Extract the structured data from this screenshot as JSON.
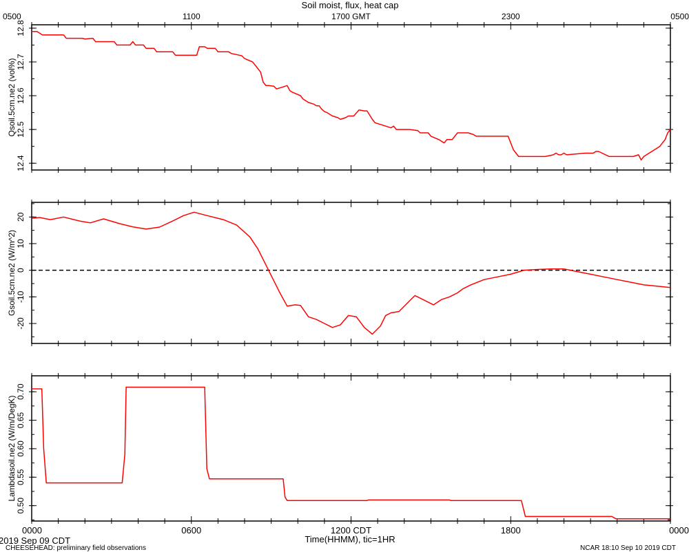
{
  "title": "Soil moist, flux, heat cap",
  "top_axis": {
    "suffix_label": "1700 GMT",
    "ticks": [
      "0500",
      "1100",
      "1700 GMT",
      "2300",
      "0500"
    ]
  },
  "bottom_axis": {
    "ticks": [
      "0000",
      "0600",
      "1200 CDT",
      "1800",
      "0000"
    ],
    "label": "Time(HHMM), tic=1HR"
  },
  "footer": {
    "date_left": "2019 Sep 09 CDT",
    "project": "CHEESEHEAD: preliminary field observations",
    "stamp": "NCAR 18:10 Sep 10 2019 CDT"
  },
  "colors": {
    "series": "#ff0000",
    "axes": "#000000",
    "zero_line": "#000000"
  },
  "chart_data": [
    {
      "type": "line",
      "ylabel": "Qsoil.5cm.ne2 (vol%)",
      "ylim": [
        12.38,
        12.81
      ],
      "yticks": [
        "12.4",
        "12.5",
        "12.6",
        "12.7",
        "12.8"
      ],
      "grid": false,
      "series": [
        {
          "x": [
            0.0,
            0.2,
            0.4,
            1.2,
            1.3,
            1.9,
            2.0,
            2.3,
            2.4,
            3.1,
            3.2,
            3.7,
            3.8,
            3.9,
            4.2,
            4.3,
            4.6,
            4.7,
            5.3,
            5.4,
            5.6,
            5.7,
            6.2,
            6.3,
            6.5,
            6.6,
            6.9,
            7.0,
            7.4,
            7.5,
            7.8,
            7.9,
            8.0,
            8.3,
            8.4,
            8.6,
            8.7,
            8.8,
            8.9,
            9.1,
            9.2,
            9.4,
            9.6,
            9.7,
            9.8,
            10.1,
            10.2,
            10.4,
            10.6,
            10.7,
            10.8,
            10.9,
            11.0,
            11.1,
            11.3,
            11.5,
            11.6,
            11.8,
            11.9,
            12.1,
            12.3,
            12.5,
            12.6,
            12.8,
            12.9,
            13.1,
            13.3,
            13.5,
            13.6,
            13.7,
            13.8,
            13.9,
            14.1,
            14.2,
            14.5,
            14.6,
            14.9,
            15.0,
            15.3,
            15.4,
            15.5,
            15.6,
            15.8,
            15.9,
            16.0,
            16.2,
            16.4,
            16.6,
            16.7,
            17.0,
            17.1,
            17.9,
            18.0,
            18.1,
            18.3,
            18.4,
            18.5,
            19.1,
            19.3,
            19.6,
            19.7,
            19.8,
            19.9,
            20.0,
            20.1,
            20.8,
            20.9,
            21.1,
            21.2,
            21.3,
            21.7,
            22.5,
            22.6,
            22.8,
            22.9,
            23.0,
            23.2,
            23.4,
            23.6,
            23.7,
            23.8,
            23.9,
            24.0
          ],
          "y": [
            12.79,
            12.79,
            12.78,
            12.78,
            12.77,
            12.77,
            12.768,
            12.77,
            12.76,
            12.76,
            12.75,
            12.75,
            12.76,
            12.75,
            12.75,
            12.74,
            12.74,
            12.73,
            12.73,
            12.72,
            12.72,
            12.72,
            12.72,
            12.745,
            12.745,
            12.74,
            12.74,
            12.73,
            12.73,
            12.725,
            12.72,
            12.718,
            12.71,
            12.7,
            12.69,
            12.67,
            12.64,
            12.63,
            12.63,
            12.628,
            12.62,
            12.625,
            12.63,
            12.615,
            12.61,
            12.6,
            12.59,
            12.58,
            12.575,
            12.57,
            12.57,
            12.56,
            12.553,
            12.55,
            12.54,
            12.535,
            12.53,
            12.535,
            12.54,
            12.54,
            12.558,
            12.555,
            12.555,
            12.53,
            12.52,
            12.515,
            12.51,
            12.505,
            12.51,
            12.5,
            12.5,
            12.5,
            12.5,
            12.5,
            12.497,
            12.49,
            12.49,
            12.48,
            12.47,
            12.465,
            12.46,
            12.47,
            12.47,
            12.48,
            12.49,
            12.49,
            12.49,
            12.485,
            12.48,
            12.48,
            12.48,
            12.48,
            12.46,
            12.44,
            12.42,
            12.42,
            12.42,
            12.42,
            12.42,
            12.425,
            12.43,
            12.425,
            12.425,
            12.43,
            12.425,
            12.43,
            12.43,
            12.43,
            12.435,
            12.435,
            12.42,
            12.42,
            12.42,
            12.425,
            12.41,
            12.42,
            12.43,
            12.44,
            12.45,
            12.46,
            12.47,
            12.49,
            12.5
          ]
        }
      ]
    },
    {
      "type": "line",
      "ylabel": "Gsoil.5cm.ne2 (W/m^2)",
      "ylim": [
        -27.5,
        25.5
      ],
      "yticks": [
        "-20",
        "-10",
        "0",
        "10",
        "20"
      ],
      "zero_line": true,
      "grid": false,
      "series": [
        {
          "x": [
            0.0,
            0.3,
            0.7,
            1.2,
            1.8,
            2.2,
            2.7,
            3.3,
            3.8,
            4.3,
            4.8,
            5.3,
            5.7,
            6.1,
            6.6,
            7.2,
            7.7,
            8.2,
            8.5,
            8.8,
            9.1,
            9.3,
            9.6,
            9.9,
            10.1,
            10.4,
            10.7,
            11.0,
            11.3,
            11.6,
            11.9,
            12.2,
            12.5,
            12.8,
            13.1,
            13.3,
            13.5,
            13.8,
            14.1,
            14.4,
            14.8,
            15.1,
            15.4,
            15.7,
            16.0,
            16.2,
            16.5,
            17.0,
            17.5,
            18.0,
            18.5,
            19.0,
            19.5,
            20.0,
            20.5,
            21.0,
            21.5,
            22.0,
            22.5,
            23.0,
            23.5,
            24.0
          ],
          "y": [
            19.5,
            19.8,
            19.0,
            20.0,
            18.5,
            17.8,
            19.3,
            17.5,
            16.3,
            15.5,
            16.2,
            18.5,
            20.5,
            21.8,
            20.5,
            19.0,
            17.0,
            12.5,
            8.0,
            2.0,
            -4.0,
            -8.0,
            -13.5,
            -13.0,
            -13.2,
            -17.5,
            -18.5,
            -20.0,
            -21.5,
            -20.5,
            -17.0,
            -17.5,
            -21.5,
            -24.0,
            -21.0,
            -17.0,
            -16.0,
            -15.5,
            -12.5,
            -9.5,
            -11.5,
            -13.0,
            -11.0,
            -10.0,
            -8.5,
            -7.0,
            -5.5,
            -3.5,
            -2.5,
            -1.5,
            0.0,
            0.3,
            0.5,
            0.5,
            -0.5,
            -1.5,
            -2.5,
            -3.5,
            -4.5,
            -5.5,
            -6.0,
            -6.5
          ]
        }
      ]
    },
    {
      "type": "line",
      "ylabel": "Lambdasoil.ne2 (W/m/DegK)",
      "ylim": [
        0.473,
        0.728
      ],
      "yticks": [
        "0.50",
        "0.55",
        "0.60",
        "0.65",
        "0.70"
      ],
      "grid": false,
      "series": [
        {
          "x": [
            0.0,
            0.38,
            0.45,
            0.55,
            3.4,
            3.5,
            3.55,
            6.5,
            6.58,
            6.68,
            9.45,
            9.52,
            9.6,
            12.6,
            12.65,
            15.7,
            15.75,
            18.4,
            18.55,
            21.8,
            21.95,
            24.0
          ],
          "y": [
            0.705,
            0.705,
            0.6,
            0.54,
            0.54,
            0.59,
            0.708,
            0.708,
            0.565,
            0.547,
            0.547,
            0.515,
            0.509,
            0.509,
            0.51,
            0.51,
            0.509,
            0.509,
            0.481,
            0.481,
            0.477,
            0.477
          ]
        }
      ]
    }
  ]
}
